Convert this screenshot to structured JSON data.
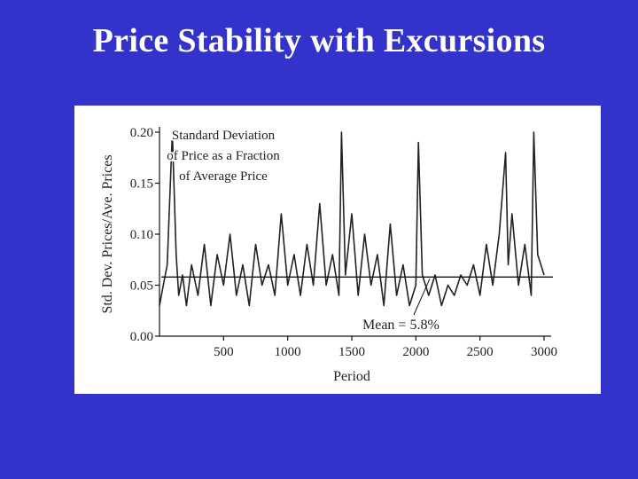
{
  "slide": {
    "title": "Price Stability with Excursions",
    "background_color": "#3333cc",
    "title_color": "#ffffff"
  },
  "chart_data": {
    "type": "line",
    "title": "",
    "annotation": [
      "Standard Deviation",
      "of Price as a Fraction",
      "of Average Price"
    ],
    "mean_label": "Mean = 5.8%",
    "mean_value": 0.058,
    "xlabel": "Period",
    "ylabel": "Std. Dev. Prices/Ave. Prices",
    "xlim": [
      0,
      3000
    ],
    "ylim": [
      0,
      0.2
    ],
    "x_ticks": [
      500,
      1000,
      1500,
      2000,
      2500,
      3000
    ],
    "x_tick_labels": [
      "500",
      "1000",
      "1500",
      "2000",
      "2500",
      "3000"
    ],
    "y_ticks": [
      0,
      0.05,
      0.1,
      0.15,
      0.2
    ],
    "y_tick_labels": [
      "0.00",
      "0.05",
      "0.10",
      "0.15",
      "0.20"
    ],
    "grid": false,
    "line_color": "#222222",
    "series": [
      {
        "x": [
          0,
          30,
          60,
          100,
          130,
          150,
          180,
          210,
          250,
          300,
          350,
          400,
          450,
          500,
          550,
          600,
          650,
          700,
          750,
          800,
          850,
          900,
          950,
          1000,
          1050,
          1100,
          1150,
          1200,
          1250,
          1300,
          1350,
          1400,
          1420,
          1450,
          1500,
          1550,
          1600,
          1650,
          1700,
          1750,
          1800,
          1850,
          1900,
          1950,
          2000,
          2020,
          2050,
          2100,
          2150,
          2200,
          2250,
          2300,
          2350,
          2400,
          2450,
          2500,
          2550,
          2600,
          2650,
          2700,
          2720,
          2750,
          2800,
          2850,
          2900,
          2920,
          2950,
          3000
        ],
        "y": [
          0.03,
          0.05,
          0.07,
          0.2,
          0.08,
          0.04,
          0.06,
          0.03,
          0.07,
          0.04,
          0.09,
          0.03,
          0.08,
          0.05,
          0.1,
          0.04,
          0.07,
          0.03,
          0.09,
          0.05,
          0.07,
          0.04,
          0.12,
          0.05,
          0.08,
          0.04,
          0.09,
          0.05,
          0.13,
          0.05,
          0.08,
          0.04,
          0.2,
          0.06,
          0.12,
          0.04,
          0.1,
          0.05,
          0.08,
          0.03,
          0.11,
          0.04,
          0.07,
          0.03,
          0.05,
          0.19,
          0.06,
          0.04,
          0.06,
          0.03,
          0.05,
          0.04,
          0.06,
          0.05,
          0.07,
          0.04,
          0.09,
          0.05,
          0.1,
          0.18,
          0.07,
          0.12,
          0.05,
          0.09,
          0.04,
          0.2,
          0.08,
          0.06
        ]
      }
    ]
  }
}
